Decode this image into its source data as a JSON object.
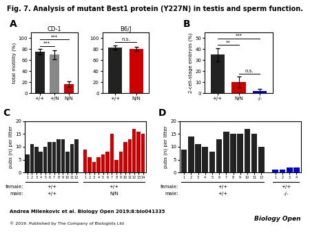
{
  "title": "Fig. 7. Analysis of mutant Best1 protein (Y227N) in testis and sperm function.",
  "chart_data": [
    {
      "type": "bar",
      "panel": "A",
      "title": "CD-1",
      "categories": [
        "+/+",
        "+/N",
        "N/N"
      ],
      "values": [
        75,
        70,
        17
      ],
      "errors": [
        5,
        8,
        5
      ],
      "colors": [
        "#222222",
        "#888888",
        "#cc0000"
      ],
      "y_label": "total motility (%)",
      "ylim": [
        0,
        110
      ],
      "yticks": [
        0,
        20,
        40,
        60,
        80,
        100
      ],
      "annotations": [
        {
          "text": "***",
          "between": [
            "+/+",
            "+/N"
          ]
        },
        {
          "text": "***",
          "between": [
            "+/+",
            "N/N"
          ]
        }
      ]
    },
    {
      "type": "bar",
      "title": "B6/J",
      "categories": [
        "+/+",
        "N/N"
      ],
      "values": [
        83,
        80
      ],
      "errors": [
        4,
        4
      ],
      "colors": [
        "#222222",
        "#cc0000"
      ],
      "ylim": [
        0,
        110
      ],
      "yticks": [
        0,
        20,
        40,
        60,
        80,
        100
      ],
      "annotations": [
        {
          "text": "n.s.",
          "between": [
            "+/+",
            "N/N"
          ]
        }
      ]
    },
    {
      "type": "bar",
      "panel": "B",
      "categories": [
        "+/+",
        "N/N",
        "-/-"
      ],
      "values": [
        35,
        10,
        2
      ],
      "errors": [
        6,
        5,
        2
      ],
      "colors": [
        "#222222",
        "#cc0000",
        "#0000cc"
      ],
      "y_label": "2-cell-stage embryos (%)",
      "ylim": [
        0,
        55
      ],
      "yticks": [
        0,
        10,
        20,
        30,
        40,
        50
      ],
      "annotations": [
        {
          "text": "**",
          "between": [
            "+/+",
            "N/N"
          ]
        },
        {
          "text": "***",
          "between": [
            "+/+",
            "-/-"
          ]
        },
        {
          "text": "n.s.",
          "between": [
            "N/N",
            "-/-"
          ]
        }
      ]
    },
    {
      "type": "bar",
      "panel": "C",
      "categories": [
        "1",
        "2",
        "3",
        "4",
        "5",
        "6",
        "7",
        "8",
        "9",
        "10",
        "11",
        "12",
        null,
        "1",
        "2",
        "3",
        "4",
        "5",
        "6",
        "7",
        "8",
        "9",
        "10",
        "11",
        "12",
        "13",
        "14"
      ],
      "series": [
        {
          "color": "#222222",
          "values": [
            7,
            11,
            10,
            8,
            10,
            12,
            12,
            13,
            13,
            8,
            11,
            13,
            null,
            null,
            null,
            null,
            null,
            null,
            null,
            null,
            null,
            null,
            null,
            null,
            null,
            null,
            null
          ]
        },
        {
          "color": "#cc0000",
          "values": [
            null,
            null,
            null,
            null,
            null,
            null,
            null,
            null,
            null,
            null,
            null,
            null,
            null,
            9,
            6,
            4,
            6,
            7,
            8,
            15,
            5,
            8,
            12,
            13,
            17,
            16,
            15
          ]
        }
      ],
      "y_label": "pubs (n) per litter",
      "ylim": [
        0,
        20
      ],
      "yticks": [
        0,
        5,
        10,
        15,
        20
      ],
      "row_labels": [
        "female:",
        "male:"
      ],
      "groups": [
        {
          "span": [
            0,
            11
          ],
          "labels": [
            "+/+",
            "+/+"
          ]
        },
        {
          "span": [
            13,
            26
          ],
          "labels": [
            "+/+",
            "N/N"
          ]
        }
      ]
    },
    {
      "type": "bar",
      "panel": "D",
      "categories": [
        "1",
        "2",
        "3",
        "4",
        "5",
        "6",
        "7",
        "8",
        "9",
        "10",
        "11",
        "12",
        null,
        "1",
        "2",
        "3",
        "4"
      ],
      "series": [
        {
          "color": "#222222",
          "values": [
            9,
            14,
            11,
            10,
            8,
            13,
            16,
            15,
            15,
            17,
            15,
            10,
            null,
            null,
            null,
            null,
            null
          ]
        },
        {
          "color": "#0000cc",
          "values": [
            null,
            null,
            null,
            null,
            null,
            null,
            null,
            null,
            null,
            null,
            null,
            null,
            null,
            1,
            1,
            2,
            2
          ]
        }
      ],
      "y_label": "pubs (n) per litter",
      "ylim": [
        0,
        20
      ],
      "yticks": [
        0,
        5,
        10,
        15,
        20
      ],
      "row_labels": [
        "female:",
        "male:"
      ],
      "groups": [
        {
          "span": [
            0,
            11
          ],
          "labels": [
            "+/+",
            "+/+"
          ]
        },
        {
          "span": [
            13,
            16
          ],
          "labels": [
            "+/+",
            "-/-"
          ]
        }
      ]
    }
  ],
  "annotations": [
    {
      "text": "Andrea Milenkovic et al. Biology Open 2019;8:bio041335"
    },
    {
      "text": "© 2019. Published by The Company of Biologists Ltd"
    },
    {
      "text": "Biology Open"
    }
  ]
}
